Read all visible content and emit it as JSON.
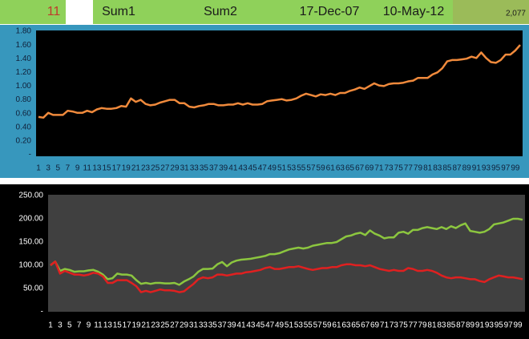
{
  "header": {
    "cells": [
      "11",
      "Sum1",
      "Sum2",
      "17-Dec-07",
      "10-May-12",
      "2,077"
    ]
  },
  "chart_data": [
    {
      "type": "line",
      "categories": [
        1,
        null,
        3,
        null,
        5,
        null,
        7,
        null,
        9,
        null,
        11,
        null,
        13,
        null,
        15,
        null,
        17,
        null,
        19,
        null,
        21,
        null,
        23,
        null,
        25,
        null,
        27,
        null,
        29,
        null,
        31,
        null,
        33,
        null,
        35,
        null,
        37,
        null,
        39,
        null,
        41,
        null,
        43,
        null,
        45,
        null,
        47,
        null,
        49,
        null,
        51,
        null,
        53,
        null,
        55,
        null,
        57,
        null,
        59,
        null,
        61,
        null,
        63,
        null,
        65,
        null,
        67,
        null,
        69,
        null,
        71,
        null,
        73,
        null,
        75,
        null,
        77,
        null,
        79,
        null,
        81,
        null,
        83,
        null,
        85,
        null,
        87,
        null,
        89,
        null,
        91,
        null,
        93,
        null,
        95,
        null,
        97,
        null,
        99,
        null
      ],
      "series": [
        {
          "color": "#f08a3c",
          "values": [
            0.55,
            0.54,
            0.61,
            0.58,
            0.58,
            0.58,
            0.64,
            0.63,
            0.61,
            0.61,
            0.64,
            0.62,
            0.66,
            0.68,
            0.67,
            0.67,
            0.68,
            0.71,
            0.7,
            0.82,
            0.77,
            0.8,
            0.74,
            0.72,
            0.73,
            0.76,
            0.78,
            0.8,
            0.8,
            0.75,
            0.75,
            0.7,
            0.69,
            0.71,
            0.72,
            0.74,
            0.74,
            0.72,
            0.72,
            0.73,
            0.73,
            0.75,
            0.73,
            0.75,
            0.73,
            0.73,
            0.74,
            0.78,
            0.79,
            0.8,
            0.81,
            0.79,
            0.8,
            0.82,
            0.86,
            0.89,
            0.87,
            0.85,
            0.88,
            0.87,
            0.89,
            0.87,
            0.9,
            0.9,
            0.93,
            0.95,
            0.98,
            0.96,
            1.0,
            1.04,
            1.01,
            1.0,
            1.03,
            1.04,
            1.04,
            1.05,
            1.07,
            1.08,
            1.12,
            1.12,
            1.12,
            1.17,
            1.2,
            1.26,
            1.36,
            1.38,
            1.38,
            1.39,
            1.4,
            1.43,
            1.41,
            1.49,
            1.41,
            1.35,
            1.34,
            1.38,
            1.46,
            1.46,
            1.52,
            1.6
          ]
        }
      ],
      "ylim": [
        0,
        1.8
      ],
      "yticks": [
        {
          "value": 0,
          "label": "-"
        },
        {
          "value": 0.2,
          "label": "0.20"
        },
        {
          "value": 0.4,
          "label": "0.40"
        },
        {
          "value": 0.6,
          "label": "0.60"
        },
        {
          "value": 0.8,
          "label": "0.80"
        },
        {
          "value": 1.0,
          "label": "1.00"
        },
        {
          "value": 1.2,
          "label": "1.20"
        },
        {
          "value": 1.4,
          "label": "1.40"
        },
        {
          "value": 1.6,
          "label": "1.60"
        },
        {
          "value": 1.8,
          "label": "1.80"
        }
      ]
    },
    {
      "type": "line",
      "categories": [
        1,
        null,
        3,
        null,
        5,
        null,
        7,
        null,
        9,
        null,
        11,
        null,
        13,
        null,
        15,
        null,
        17,
        null,
        19,
        null,
        21,
        null,
        23,
        null,
        25,
        null,
        27,
        null,
        29,
        null,
        31,
        null,
        33,
        null,
        35,
        null,
        37,
        null,
        39,
        null,
        41,
        null,
        43,
        null,
        45,
        null,
        47,
        null,
        49,
        null,
        51,
        null,
        53,
        null,
        55,
        null,
        57,
        null,
        59,
        null,
        61,
        null,
        63,
        null,
        65,
        null,
        67,
        null,
        69,
        null,
        71,
        null,
        73,
        null,
        75,
        null,
        77,
        null,
        79,
        null,
        81,
        null,
        83,
        null,
        85,
        null,
        87,
        null,
        89,
        null,
        91,
        null,
        93,
        null,
        95,
        null,
        97,
        null,
        99,
        null
      ],
      "series": [
        {
          "color": "#8cc63f",
          "values": [
            100,
            108,
            88,
            92,
            90,
            86,
            87,
            87,
            89,
            90,
            86,
            80,
            70,
            72,
            82,
            80,
            80,
            78,
            68,
            60,
            62,
            60,
            62,
            62,
            61,
            61,
            62,
            58,
            65,
            70,
            76,
            86,
            92,
            92,
            93,
            102,
            107,
            98,
            106,
            110,
            112,
            113,
            114,
            116,
            118,
            120,
            124,
            124,
            126,
            130,
            134,
            136,
            138,
            136,
            138,
            142,
            144,
            146,
            148,
            148,
            150,
            156,
            162,
            164,
            168,
            170,
            165,
            175,
            168,
            164,
            158,
            160,
            160,
            170,
            172,
            168,
            176,
            176,
            180,
            182,
            180,
            178,
            182,
            178,
            184,
            180,
            186,
            190,
            174,
            172,
            170,
            172,
            178,
            188,
            190,
            192,
            196,
            200,
            200,
            198
          ]
        },
        {
          "color": "#e02020",
          "values": [
            100,
            108,
            82,
            88,
            84,
            80,
            80,
            78,
            80,
            84,
            82,
            76,
            62,
            62,
            68,
            68,
            68,
            62,
            55,
            42,
            45,
            42,
            45,
            48,
            46,
            46,
            45,
            42,
            44,
            52,
            60,
            70,
            74,
            72,
            74,
            80,
            80,
            78,
            80,
            82,
            82,
            85,
            86,
            88,
            90,
            94,
            96,
            92,
            92,
            94,
            96,
            96,
            98,
            95,
            92,
            90,
            92,
            94,
            94,
            96,
            96,
            100,
            102,
            102,
            100,
            100,
            98,
            100,
            96,
            92,
            90,
            88,
            90,
            88,
            88,
            94,
            92,
            88,
            88,
            90,
            88,
            84,
            78,
            74,
            72,
            74,
            74,
            72,
            70,
            70,
            66,
            64,
            70,
            74,
            78,
            76,
            74,
            74,
            72,
            70
          ]
        }
      ],
      "ylim": [
        0,
        250
      ],
      "yticks": [
        {
          "value": 0,
          "label": "-"
        },
        {
          "value": 50,
          "label": "50.00"
        },
        {
          "value": 100,
          "label": "100.00"
        },
        {
          "value": 150,
          "label": "150.00"
        },
        {
          "value": 200,
          "label": "200.00"
        },
        {
          "value": 250,
          "label": "250.00"
        }
      ]
    }
  ]
}
